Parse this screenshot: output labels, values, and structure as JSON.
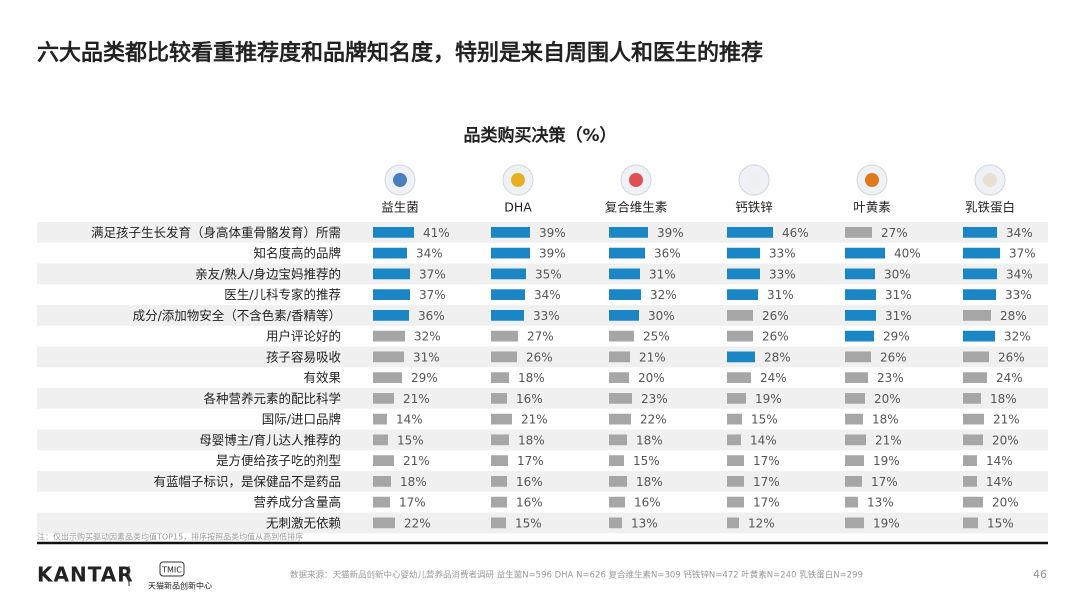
{
  "title": "六大品类都比较看重推荐度和品牌知名度，特别是来自周围人和医生的推荐",
  "note": "注：仅出示购买驱动因素品类均值TOP15，排序按照品类均值从高到低排序",
  "source": "数据来源：天猫新品创新中心婴幼儿营养品消费者调研  益生菌N=596 DHA N=626 复合维生素N=309 钙铁锌N=472 叶黄素N=240 乳铁蛋白N=299",
  "page_number": "46",
  "logos": {
    "kantar": "KANTAR",
    "tmic": "TMIC",
    "tmic_name": "天猫新品创新中心"
  },
  "chart_data": {
    "type": "bar",
    "orientation": "horizontal",
    "title": "品类购买决策（%）",
    "xlim": [
      0,
      100
    ],
    "categories": [
      "满足孩子生长发育（身高体重骨骼发育）所需",
      "知名度高的品牌",
      "亲友/熟人/身边宝妈推荐的",
      "医生/儿科专家的推荐",
      "成分/添加物安全（不含色素/香精等）",
      "用户评论好的",
      "孩子容易吸收",
      "有效果",
      "各种营养元素的配比科学",
      "国际/进口品牌",
      "母婴博主/育儿达人推荐的",
      "是方便给孩子吃的剂型",
      "有蓝帽子标识，是保健品不是药品",
      "营养成分含量高",
      "无刺激无依赖"
    ],
    "series": [
      {
        "name": "益生菌",
        "values": [
          41,
          34,
          37,
          37,
          36,
          32,
          31,
          29,
          21,
          14,
          15,
          21,
          18,
          17,
          22
        ],
        "value_labels": [
          "41%",
          "34%",
          "37%",
          "37%",
          "36%",
          "32%",
          "31%",
          "29%",
          "21%",
          "14%",
          "15%",
          "21%",
          "18%",
          "17%",
          "22%"
        ],
        "colors": [
          "#1a86c6",
          "#1a86c6",
          "#1a86c6",
          "#1a86c6",
          "#1a86c6",
          "#a6a6a6",
          "#a6a6a6",
          "#a6a6a6",
          "#a6a6a6",
          "#a6a6a6",
          "#a6a6a6",
          "#a6a6a6",
          "#a6a6a6",
          "#a6a6a6",
          "#a6a6a6"
        ]
      },
      {
        "name": "DHA",
        "values": [
          39,
          39,
          35,
          34,
          33,
          27,
          26,
          18,
          16,
          21,
          18,
          17,
          16,
          16,
          15
        ],
        "value_labels": [
          "39%",
          "39%",
          "35%",
          "34%",
          "33%",
          "27%",
          "26%",
          "18%",
          "16%",
          "21%",
          "18%",
          "17%",
          "16%",
          "16%",
          "15%"
        ],
        "colors": [
          "#1a86c6",
          "#1a86c6",
          "#1a86c6",
          "#1a86c6",
          "#1a86c6",
          "#a6a6a6",
          "#a6a6a6",
          "#a6a6a6",
          "#a6a6a6",
          "#a6a6a6",
          "#a6a6a6",
          "#a6a6a6",
          "#a6a6a6",
          "#a6a6a6",
          "#a6a6a6"
        ]
      },
      {
        "name": "复合维生素",
        "values": [
          39,
          36,
          31,
          32,
          30,
          25,
          21,
          20,
          23,
          22,
          18,
          15,
          18,
          16,
          13
        ],
        "value_labels": [
          "39%",
          "36%",
          "31%",
          "32%",
          "30%",
          "25%",
          "21%",
          "20%",
          "23%",
          "22%",
          "18%",
          "15%",
          "18%",
          "16%",
          "13%"
        ],
        "colors": [
          "#1a86c6",
          "#1a86c6",
          "#1a86c6",
          "#1a86c6",
          "#1a86c6",
          "#a6a6a6",
          "#a6a6a6",
          "#a6a6a6",
          "#a6a6a6",
          "#a6a6a6",
          "#a6a6a6",
          "#a6a6a6",
          "#a6a6a6",
          "#a6a6a6",
          "#a6a6a6"
        ]
      },
      {
        "name": "钙铁锌",
        "values": [
          46,
          33,
          33,
          31,
          26,
          26,
          28,
          24,
          19,
          15,
          14,
          17,
          17,
          17,
          12
        ],
        "value_labels": [
          "46%",
          "33%",
          "33%",
          "31%",
          "26%",
          "26%",
          "28%",
          "24%",
          "19%",
          "15%",
          "14%",
          "17%",
          "17%",
          "17%",
          "12%"
        ],
        "colors": [
          "#1a86c6",
          "#1a86c6",
          "#1a86c6",
          "#1a86c6",
          "#a6a6a6",
          "#a6a6a6",
          "#1a86c6",
          "#a6a6a6",
          "#a6a6a6",
          "#a6a6a6",
          "#a6a6a6",
          "#a6a6a6",
          "#a6a6a6",
          "#a6a6a6",
          "#a6a6a6"
        ]
      },
      {
        "name": "叶黄素",
        "values": [
          27,
          40,
          30,
          31,
          31,
          29,
          26,
          23,
          20,
          18,
          21,
          19,
          17,
          13,
          19
        ],
        "value_labels": [
          "27%",
          "40%",
          "30%",
          "31%",
          "31%",
          "29%",
          "26%",
          "23%",
          "20%",
          "18%",
          "21%",
          "19%",
          "17%",
          "13%",
          "19%"
        ],
        "colors": [
          "#a6a6a6",
          "#1a86c6",
          "#1a86c6",
          "#1a86c6",
          "#1a86c6",
          "#1a86c6",
          "#a6a6a6",
          "#a6a6a6",
          "#a6a6a6",
          "#a6a6a6",
          "#a6a6a6",
          "#a6a6a6",
          "#a6a6a6",
          "#a6a6a6",
          "#a6a6a6"
        ]
      },
      {
        "name": "乳铁蛋白",
        "values": [
          34,
          37,
          34,
          33,
          28,
          32,
          26,
          24,
          18,
          21,
          20,
          14,
          14,
          20,
          15
        ],
        "value_labels": [
          "34%",
          "37%",
          "34%",
          "33%",
          "28%",
          "32%",
          "26%",
          "24%",
          "18%",
          "21%",
          "20%",
          "14%",
          "14%",
          "20%",
          "15%"
        ],
        "colors": [
          "#1a86c6",
          "#1a86c6",
          "#1a86c6",
          "#1a86c6",
          "#a6a6a6",
          "#1a86c6",
          "#a6a6a6",
          "#a6a6a6",
          "#a6a6a6",
          "#a6a6a6",
          "#a6a6a6",
          "#a6a6a6",
          "#a6a6a6",
          "#a6a6a6",
          "#a6a6a6"
        ]
      }
    ]
  }
}
